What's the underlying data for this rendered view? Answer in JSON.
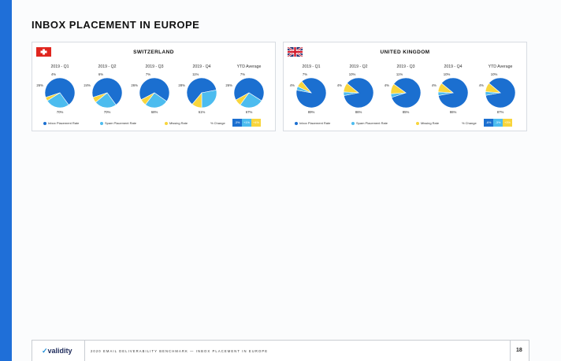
{
  "page": {
    "title": "INBOX PLACEMENT IN EUROPE",
    "accent_color": "#1f6fd8"
  },
  "colors": {
    "inbox": "#1b6fd0",
    "spam": "#4cbcef",
    "missing": "#f8d53c"
  },
  "legend": {
    "inbox": "Inbox Placement Rate",
    "spam": "Spam Placement Rate",
    "missing": "Missing Rate",
    "pct_change": "% Change"
  },
  "chart_data": [
    {
      "type": "pie",
      "title": "SWITZERLAND",
      "flag_icon": "swiss-flag-icon",
      "categories": [
        "2019 - Q1",
        "2019 - Q2",
        "2019 - Q3",
        "2019 - Q4",
        "YTD Average"
      ],
      "series": [
        {
          "name": "Inbox Placement Rate",
          "values": [
            70,
            70,
            68,
            61,
            67
          ],
          "labels": [
            "70%",
            "70%",
            "68%",
            "61%",
            "67%"
          ]
        },
        {
          "name": "Spam Placement Rate",
          "values": [
            26,
            24,
            26,
            28,
            26
          ],
          "labels": [
            "26%",
            "24%",
            "26%",
            "28%",
            "26%"
          ]
        },
        {
          "name": "Missing Rate",
          "values": [
            4,
            6,
            7,
            11,
            7
          ],
          "labels": [
            "4%",
            "6%",
            "7%",
            "11%",
            "7%"
          ]
        }
      ],
      "pct_change": [
        "-3%",
        "+1%",
        "+4%"
      ]
    },
    {
      "type": "pie",
      "title": "UNITED KINGDOM",
      "flag_icon": "uk-flag-icon",
      "categories": [
        "2019 - Q1",
        "2019 - Q2",
        "2019 - Q3",
        "2019 - Q4",
        "YTD Average"
      ],
      "series": [
        {
          "name": "Inbox Placement Rate",
          "values": [
            89,
            86,
            85,
            86,
            87
          ],
          "labels": [
            "89%",
            "86%",
            "85%",
            "86%",
            "87%"
          ]
        },
        {
          "name": "Spam Placement Rate",
          "values": [
            4,
            4,
            4,
            4,
            4
          ],
          "labels": [
            "4%",
            "4%",
            "4%",
            "4%",
            "4%"
          ]
        },
        {
          "name": "Missing Rate",
          "values": [
            7,
            10,
            11,
            10,
            10
          ],
          "labels": [
            "7%",
            "10%",
            "11%",
            "10%",
            "10%"
          ]
        }
      ],
      "pct_change": [
        "-6%",
        "-3%",
        "+3%"
      ]
    }
  ],
  "footer": {
    "logo_mark": "✓",
    "logo_text": "validity",
    "text": "2020 EMAIL DELIVERABILITY BENCHMARK — INBOX PLACEMENT IN EUROPE",
    "page_number": "18"
  }
}
